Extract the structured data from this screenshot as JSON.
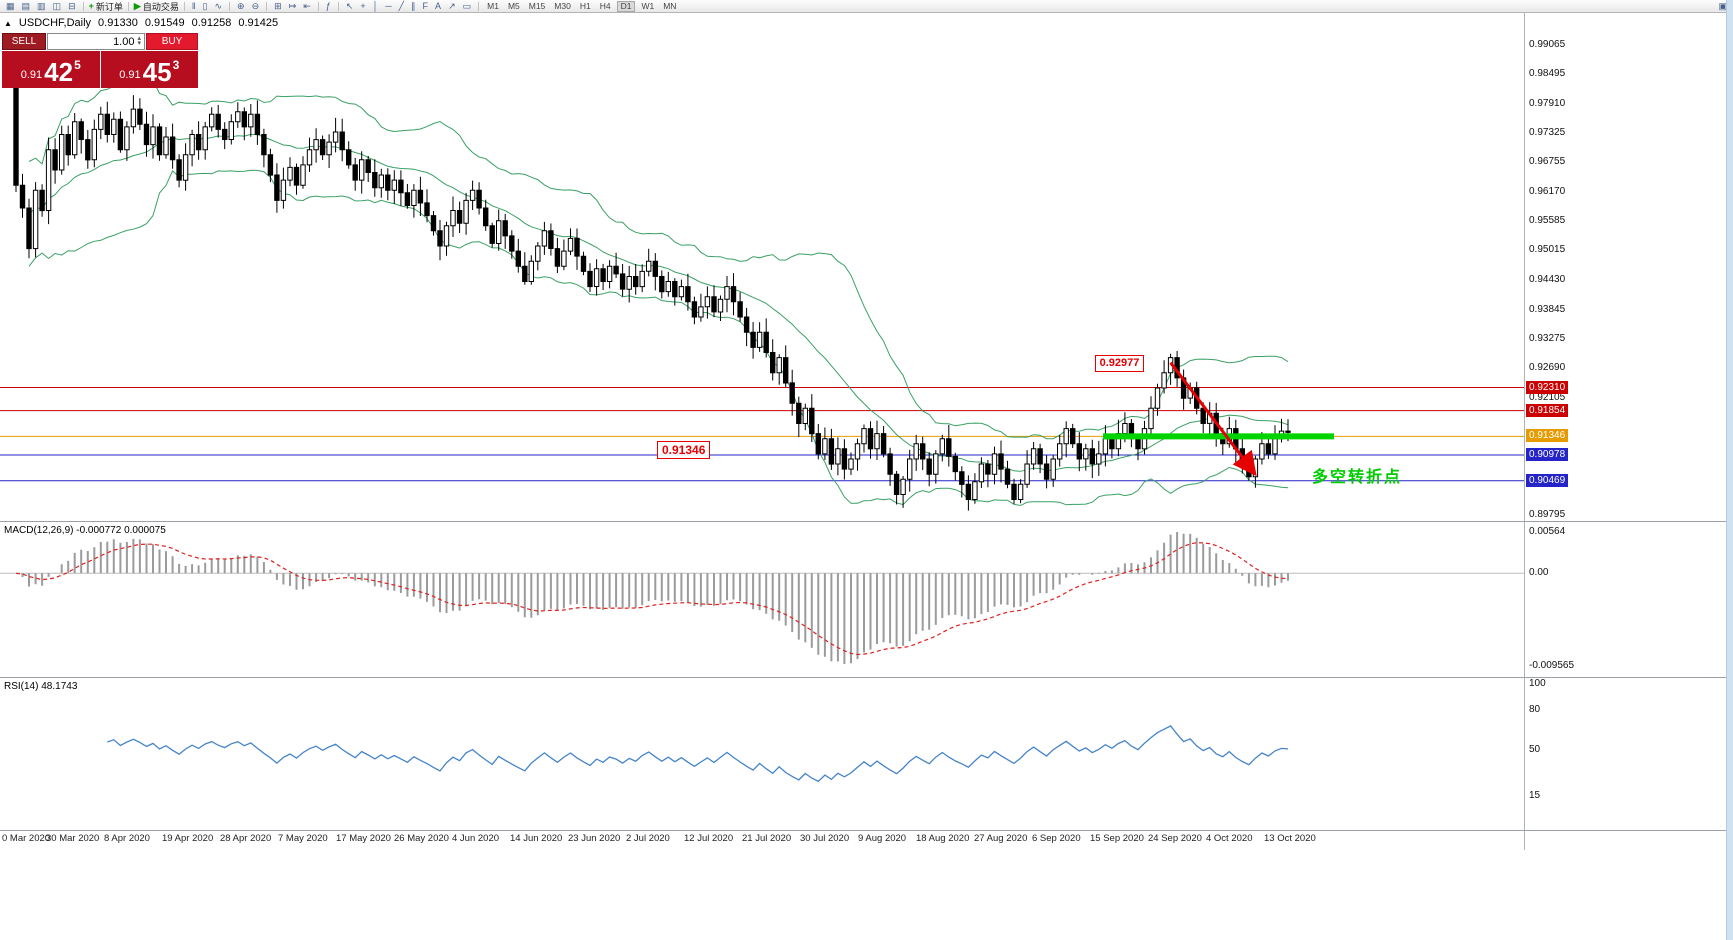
{
  "toolbar": {
    "icons_left": [
      {
        "name": "new-chart-icon",
        "glyph": "▦"
      },
      {
        "name": "profiles-icon",
        "glyph": "▤"
      },
      {
        "name": "market-watch-icon",
        "glyph": "▥"
      },
      {
        "name": "navigator-icon",
        "glyph": "◫"
      },
      {
        "name": "terminal-icon",
        "glyph": "⊟"
      }
    ],
    "new_order": {
      "label": "新订单",
      "icon_glyph": "+"
    },
    "autotrading": {
      "label": "自动交易",
      "icon_glyph": "▶"
    },
    "icons_mid": [
      {
        "name": "bar-chart-icon",
        "glyph": "‖"
      },
      {
        "name": "candlestick-chart-icon",
        "glyph": "▯"
      },
      {
        "name": "line-chart-icon",
        "glyph": "∿"
      },
      {
        "name": "zoom-in-icon",
        "glyph": "⊕"
      },
      {
        "name": "zoom-out-icon",
        "glyph": "⊖"
      },
      {
        "name": "tile-windows-icon",
        "glyph": "⊞"
      },
      {
        "name": "auto-scroll-icon",
        "glyph": "↦"
      },
      {
        "name": "chart-shift-icon",
        "glyph": "⇤"
      },
      {
        "name": "indicators-icon",
        "glyph": "ƒ"
      },
      {
        "name": "cursor-icon",
        "glyph": "↖"
      },
      {
        "name": "crosshair-icon",
        "glyph": "+"
      },
      {
        "name": "vertical-line-icon",
        "glyph": "│"
      },
      {
        "name": "horizontal-line-icon",
        "glyph": "─"
      },
      {
        "name": "trendline-icon",
        "glyph": "╱"
      },
      {
        "name": "channel-icon",
        "glyph": "∥"
      },
      {
        "name": "fibonacci-icon",
        "glyph": "F"
      },
      {
        "name": "text-icon",
        "glyph": "A"
      },
      {
        "name": "arrows-icon",
        "glyph": "↗"
      },
      {
        "name": "shapes-icon",
        "glyph": "▭"
      }
    ],
    "timeframes": [
      "M1",
      "M5",
      "M15",
      "M30",
      "H1",
      "H4",
      "D1",
      "W1",
      "MN"
    ],
    "active_timeframe": "D1",
    "icons_right": [
      {
        "name": "window-icon",
        "glyph": "▣"
      }
    ]
  },
  "trade_panel": {
    "sell_button": "SELL",
    "buy_button": "BUY",
    "volume_value": "1.00",
    "sell_price_prefix": "0.91",
    "sell_price_big": "42",
    "sell_price_sup": "5",
    "buy_price_prefix": "0.91",
    "buy_price_big": "45",
    "buy_price_sup": "3"
  },
  "chart": {
    "symbol_marker": "▲",
    "symbol_label": "USDCHF,Daily",
    "ohlc": {
      "open": "0.91330",
      "high": "0.91549",
      "low": "0.91258",
      "close": "0.91425"
    },
    "scale": {
      "top": 0.99065,
      "bottom": 0.89795
    },
    "first_open": 0.988,
    "bb_color": "#3aa065",
    "price_axis": [
      "0.99065",
      "0.98495",
      "0.97910",
      "0.97325",
      "0.96755",
      "0.96170",
      "0.95585",
      "0.95015",
      "0.94430",
      "0.93845",
      "0.93275",
      "0.92690",
      "0.92105",
      "0.89795"
    ],
    "level_labels": [
      {
        "value": "0.92310",
        "price": 0.9231,
        "color": "#cc0000"
      },
      {
        "value": "0.91854",
        "price": 0.91854,
        "color": "#cc0000"
      },
      {
        "value": "0.91346",
        "price": 0.91346,
        "color": "#e69b00"
      },
      {
        "value": "0.90978",
        "price": 0.90978,
        "color": "#2424c8"
      },
      {
        "value": "0.90469",
        "price": 0.90469,
        "color": "#2424c8"
      }
    ],
    "annotations": {
      "peak_label": "0.92977",
      "peak_price": 0.92977,
      "support_label": "0.91346",
      "support_price": 0.91346,
      "trough_price": 0.9047,
      "turning_point_label": "多空转折点"
    },
    "dates": [
      "0 Mar 2020",
      "30 Mar 2020",
      "8 Apr 2020",
      "19 Apr 2020",
      "28 Apr 2020",
      "7 May 2020",
      "17 May 2020",
      "26 May 2020",
      "4 Jun 2020",
      "14 Jun 2020",
      "23 Jun 2020",
      "2 Jul 2020",
      "12 Jul 2020",
      "21 Jul 2020",
      "30 Jul 2020",
      "9 Aug 2020",
      "18 Aug 2020",
      "27 Aug 2020",
      "6 Sep 2020",
      "15 Sep 2020",
      "24 Sep 2020",
      "4 Oct 2020",
      "13 Oct 2020"
    ],
    "closes": [
      0.963,
      0.9585,
      0.9505,
      0.962,
      0.958,
      0.97,
      0.966,
      0.973,
      0.969,
      0.9755,
      0.972,
      0.968,
      0.974,
      0.977,
      0.973,
      0.976,
      0.97,
      0.9745,
      0.978,
      0.975,
      0.971,
      0.9745,
      0.969,
      0.9725,
      0.968,
      0.964,
      0.969,
      0.973,
      0.97,
      0.9745,
      0.977,
      0.974,
      0.972,
      0.9755,
      0.9775,
      0.9745,
      0.977,
      0.973,
      0.969,
      0.965,
      0.96,
      0.964,
      0.9665,
      0.963,
      0.967,
      0.97,
      0.972,
      0.969,
      0.9715,
      0.9735,
      0.97,
      0.967,
      0.964,
      0.968,
      0.9655,
      0.9625,
      0.965,
      0.962,
      0.964,
      0.9615,
      0.959,
      0.962,
      0.9595,
      0.957,
      0.954,
      0.951,
      0.955,
      0.958,
      0.9555,
      0.96,
      0.962,
      0.9585,
      0.955,
      0.9515,
      0.956,
      0.953,
      0.95,
      0.947,
      0.944,
      0.948,
      0.951,
      0.954,
      0.9505,
      0.947,
      0.95,
      0.9525,
      0.949,
      0.946,
      0.943,
      0.9465,
      0.944,
      0.947,
      0.9455,
      0.9425,
      0.945,
      0.943,
      0.946,
      0.948,
      0.945,
      0.942,
      0.944,
      0.941,
      0.943,
      0.94,
      0.937,
      0.939,
      0.941,
      0.938,
      0.9405,
      0.943,
      0.94,
      0.937,
      0.934,
      0.931,
      0.934,
      0.93,
      0.926,
      0.929,
      0.924,
      0.92,
      0.916,
      0.919,
      0.914,
      0.91,
      0.913,
      0.908,
      0.911,
      0.907,
      0.909,
      0.912,
      0.915,
      0.911,
      0.914,
      0.91,
      0.906,
      0.902,
      0.905,
      0.909,
      0.912,
      0.909,
      0.906,
      0.91,
      0.913,
      0.9095,
      0.9065,
      0.904,
      0.901,
      0.9045,
      0.908,
      0.906,
      0.91,
      0.907,
      0.904,
      0.901,
      0.904,
      0.908,
      0.911,
      0.908,
      0.905,
      0.909,
      0.912,
      0.915,
      0.912,
      0.909,
      0.911,
      0.908,
      0.91,
      0.913,
      0.911,
      0.914,
      0.916,
      0.913,
      0.911,
      0.915,
      0.919,
      0.923,
      0.926,
      0.929,
      0.925,
      0.921,
      0.923,
      0.919,
      0.916,
      0.918,
      0.914,
      0.912,
      0.915,
      0.911,
      0.908,
      0.9055,
      0.909,
      0.912,
      0.91,
      0.913,
      0.9145,
      0.91425
    ]
  },
  "macd": {
    "label": "MACD(12,26,9) -0.000772 0.000075",
    "axis_top": "0.00564",
    "axis_zero": "0.00",
    "axis_bottom": "-0.009565",
    "hist_color": "#9b9b9b",
    "signal_color": "#e02020"
  },
  "rsi": {
    "label": "RSI(14) 48.1743",
    "axis": [
      "100",
      "80",
      "50",
      "15"
    ],
    "line_color": "#4584c8"
  }
}
